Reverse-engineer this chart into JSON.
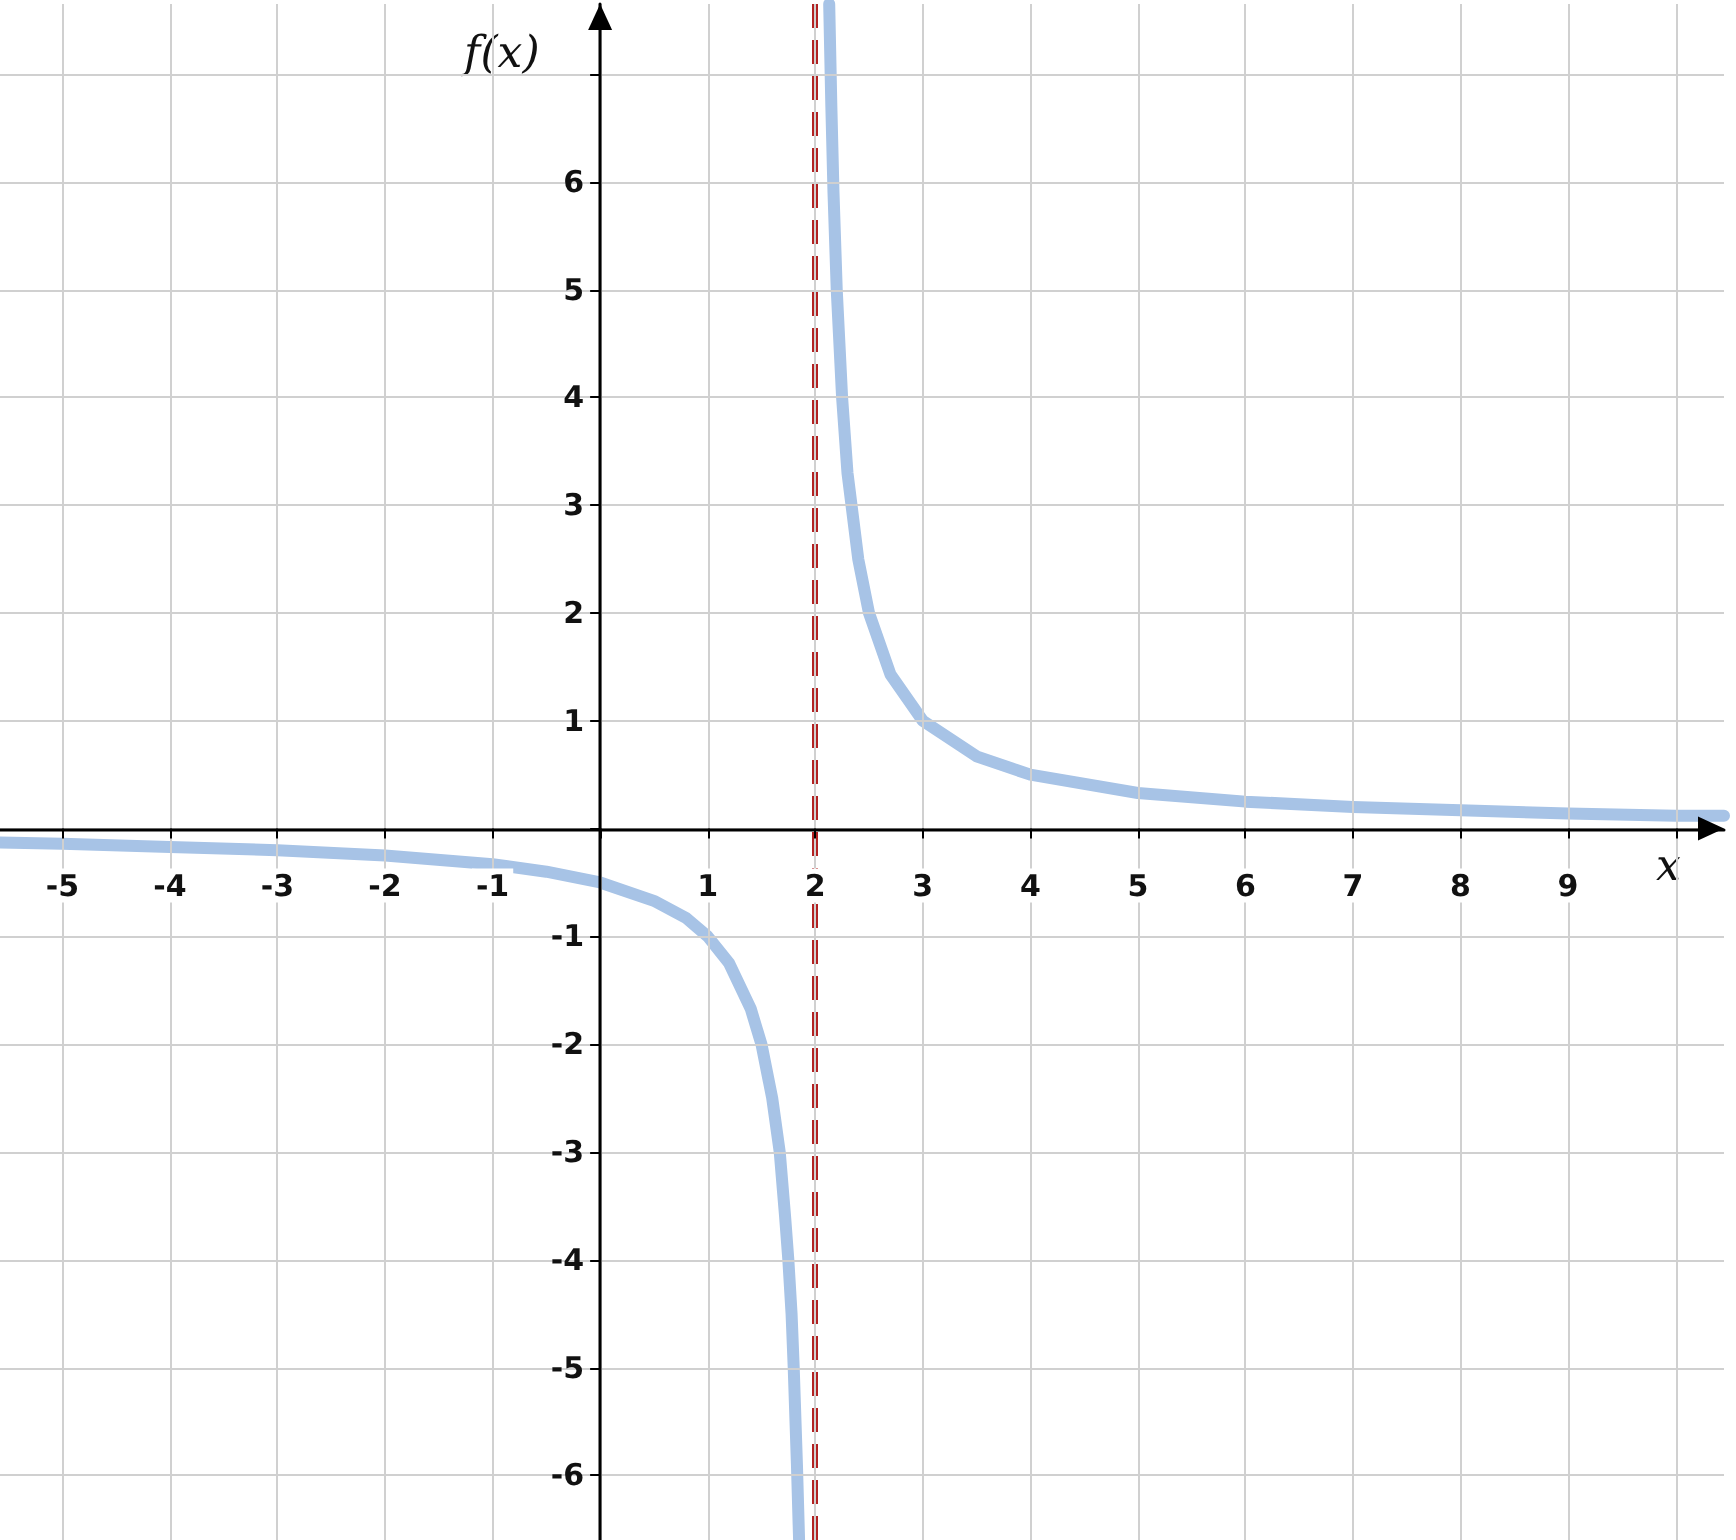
{
  "chart_data": {
    "type": "line",
    "xlabel": "x",
    "ylabel": "f(x)",
    "xlim": [
      -5.58,
      10.45
    ],
    "ylim": [
      -6.6,
      7.65
    ],
    "xticks": [
      -5,
      -4,
      -3,
      -2,
      -1,
      {
        "value": 0,
        "label": null
      },
      1,
      2,
      3,
      4,
      5,
      6,
      7,
      8,
      9,
      {
        "value": 10,
        "label": null
      }
    ],
    "yticks": [
      -6,
      -5,
      -4,
      -3,
      -2,
      -1,
      {
        "value": 0,
        "label": null
      },
      1,
      2,
      3,
      4,
      5,
      6,
      {
        "value": 7,
        "label": null
      }
    ],
    "grid": true,
    "marker": "none",
    "line_style": "solid",
    "series": [
      {
        "color": "#a7c3e6",
        "x": [
          -5.58,
          -5,
          -4,
          -3,
          -2,
          -1,
          -0.5,
          0,
          0.5,
          0.8,
          1,
          1.2,
          1.4,
          1.5,
          1.6,
          1.67,
          1.72,
          1.75,
          1.78,
          1.8,
          1.83,
          1.85
        ],
        "values": [
          -0.13,
          -0.14,
          -0.17,
          -0.2,
          -0.25,
          -0.33,
          -0.4,
          -0.5,
          -0.67,
          -0.83,
          -1,
          -1.25,
          -1.67,
          -2,
          -2.5,
          -3,
          -3.6,
          -4,
          -4.5,
          -5,
          -5.9,
          -6.6
        ]
      },
      {
        "color": "#a7c3e6",
        "x": [
          2.13,
          2.15,
          2.17,
          2.2,
          2.25,
          2.3,
          2.4,
          2.5,
          2.7,
          3,
          3.5,
          4,
          5,
          6,
          7,
          8,
          9,
          10,
          10.45
        ],
        "values": [
          7.65,
          6.7,
          5.9,
          5,
          4,
          3.3,
          2.5,
          2,
          1.43,
          1,
          0.67,
          0.5,
          0.33,
          0.25,
          0.2,
          0.17,
          0.14,
          0.12,
          0.12
        ]
      }
    ],
    "ref_lines": [
      {
        "axis": "x",
        "value": 2,
        "color": "#b22222",
        "line_style": "dashed"
      }
    ]
  }
}
